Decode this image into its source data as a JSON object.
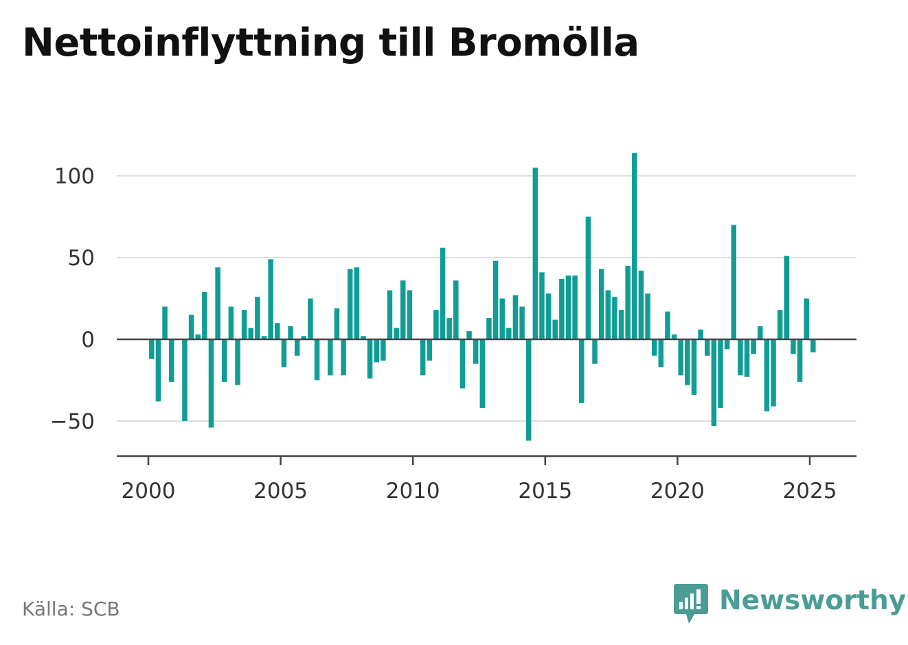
{
  "chart_data": {
    "type": "bar",
    "title": "Nettoinflyttning till Bromölla",
    "xlabel": "",
    "ylabel": "",
    "x_ticks": [
      "2000",
      "2005",
      "2010",
      "2015",
      "2020",
      "2025"
    ],
    "y_ticks": [
      "−50",
      "0",
      "50",
      "100"
    ],
    "y_tick_values": [
      -50,
      0,
      50,
      100
    ],
    "ylim": [
      -71,
      118
    ],
    "xlim": [
      1998.8,
      2026.8
    ],
    "grid": true,
    "legend": "none",
    "bar_color": "#109d96",
    "series": [
      {
        "x": [
          2000.125,
          2000.375,
          2000.625,
          2000.875,
          2001.125,
          2001.375,
          2001.625,
          2001.875,
          2002.125,
          2002.375,
          2002.625,
          2002.875,
          2003.125,
          2003.375,
          2003.625,
          2003.875,
          2004.125,
          2004.375,
          2004.625,
          2004.875,
          2005.125,
          2005.375,
          2005.625,
          2005.875,
          2006.125,
          2006.375,
          2006.625,
          2006.875,
          2007.125,
          2007.375,
          2007.625,
          2007.875,
          2008.125,
          2008.375,
          2008.625,
          2008.875,
          2009.125,
          2009.375,
          2009.625,
          2009.875,
          2010.125,
          2010.375,
          2010.625,
          2010.875,
          2011.125,
          2011.375,
          2011.625,
          2011.875,
          2012.125,
          2012.375,
          2012.625,
          2012.875,
          2013.125,
          2013.375,
          2013.625,
          2013.875,
          2014.125,
          2014.375,
          2014.625,
          2014.875,
          2015.125,
          2015.375,
          2015.625,
          2015.875,
          2016.125,
          2016.375,
          2016.625,
          2016.875,
          2017.125,
          2017.375,
          2017.625,
          2017.875,
          2018.125,
          2018.375,
          2018.625,
          2018.875,
          2019.125,
          2019.375,
          2019.625,
          2019.875,
          2020.125,
          2020.375,
          2020.625,
          2020.875,
          2021.125,
          2021.375,
          2021.625,
          2021.875,
          2022.125,
          2022.375,
          2022.625,
          2022.875,
          2023.125,
          2023.375,
          2023.625,
          2023.875,
          2024.125,
          2024.375,
          2024.625,
          2024.875,
          2025.125,
          2025.375
        ],
        "values": [
          -12,
          -38,
          20,
          -26,
          0,
          -50,
          15,
          3,
          29,
          -54,
          44,
          -26,
          20,
          -28,
          18,
          7,
          26,
          2,
          49,
          10,
          -17,
          8,
          -10,
          2,
          25,
          -25,
          0,
          -22,
          19,
          -22,
          43,
          44,
          2,
          -24,
          -14,
          -13,
          30,
          7,
          36,
          30,
          0,
          -22,
          -13,
          18,
          56,
          13,
          36,
          -30,
          5,
          -15,
          -42,
          13,
          48,
          25,
          7,
          27,
          20,
          -62,
          105,
          41,
          28,
          12,
          37,
          39,
          39,
          -39,
          75,
          -15,
          43,
          30,
          26,
          18,
          45,
          114,
          42,
          28,
          -10,
          -17,
          17,
          3,
          -22,
          -28,
          -34,
          6,
          -10,
          -53,
          -42,
          -6,
          70,
          -22,
          -23,
          -9,
          8,
          -44,
          -41,
          18,
          51,
          -9,
          -26,
          25,
          -8,
          0
        ]
      }
    ]
  },
  "footer": {
    "source": "Källa: SCB",
    "brand": "Newsworthy",
    "brand_color": "#4a9d95"
  }
}
